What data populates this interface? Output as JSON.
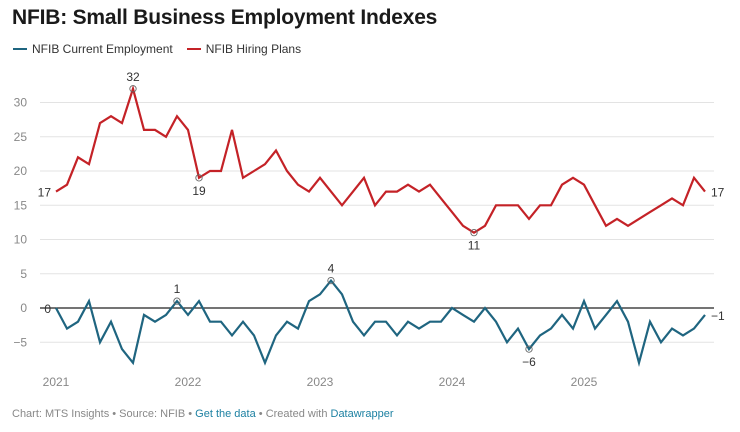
{
  "header": {
    "title": "NFIB: Small Business Employment Indexes"
  },
  "legend": [
    {
      "label": "NFIB Current Employment",
      "color": "#1f6580"
    },
    {
      "label": "NFIB Hiring Plans",
      "color": "#c42227"
    }
  ],
  "footer": {
    "chart_credit": "Chart: MTS Insights",
    "sep1": " • ",
    "source": "Source: NFIB",
    "sep2": " • ",
    "get_data_link": "Get the data",
    "sep3": " • ",
    "created_with": "Created with ",
    "datawrapper_link": "Datawrapper"
  },
  "chart_data": {
    "type": "line",
    "title": "NFIB: Small Business Employment Indexes",
    "xlabel": "",
    "ylabel": "",
    "x_start": "2021-01",
    "x_frequency": "monthly",
    "x_ticks": [
      "2021",
      "2022",
      "2023",
      "2024",
      "2025"
    ],
    "y_ticks": [
      30,
      25,
      20,
      15,
      10,
      5,
      0,
      -5
    ],
    "ylim": [
      -9,
      33
    ],
    "grid": true,
    "legend_position": "top-left",
    "series": [
      {
        "name": "NFIB Current Employment",
        "color": "#1f6580",
        "values": [
          0,
          -3,
          -2,
          1,
          -5,
          -2,
          -6,
          -8,
          -1,
          -2,
          -1,
          1,
          -1,
          1,
          -2,
          -2,
          -4,
          -2,
          -4,
          -8,
          -4,
          -2,
          -3,
          1,
          2,
          4,
          2,
          -2,
          -4,
          -2,
          -2,
          -4,
          -2,
          -3,
          -2,
          -2,
          0,
          -1,
          -2,
          0,
          -2,
          -5,
          -3,
          -6,
          -4,
          -3,
          -1,
          -3,
          1,
          -3,
          -1,
          1,
          -2,
          -8,
          -2,
          -5,
          -3,
          -4,
          -3,
          -1
        ],
        "annotations": [
          {
            "index": 0,
            "label": "0"
          },
          {
            "index": 11,
            "label": "1",
            "marker": true
          },
          {
            "index": 25,
            "label": "4",
            "marker": true
          },
          {
            "index": 43,
            "label": "−6",
            "marker": true
          },
          {
            "index": 59,
            "label": "−1"
          }
        ]
      },
      {
        "name": "NFIB Hiring Plans",
        "color": "#c42227",
        "values": [
          17,
          18,
          22,
          21,
          27,
          28,
          27,
          32,
          26,
          26,
          25,
          28,
          26,
          19,
          20,
          20,
          26,
          19,
          20,
          21,
          23,
          20,
          18,
          17,
          19,
          17,
          15,
          17,
          19,
          15,
          17,
          17,
          18,
          17,
          18,
          16,
          14,
          12,
          11,
          12,
          15,
          15,
          15,
          13,
          15,
          15,
          18,
          19,
          18,
          15,
          12,
          13,
          12,
          13,
          14,
          15,
          16,
          15,
          19,
          17
        ],
        "annotations": [
          {
            "index": 0,
            "label": "17"
          },
          {
            "index": 7,
            "label": "32",
            "marker": true
          },
          {
            "index": 13,
            "label": "19",
            "marker": true
          },
          {
            "index": 38,
            "label": "11",
            "marker": true
          },
          {
            "index": 59,
            "label": "17"
          }
        ]
      }
    ]
  }
}
